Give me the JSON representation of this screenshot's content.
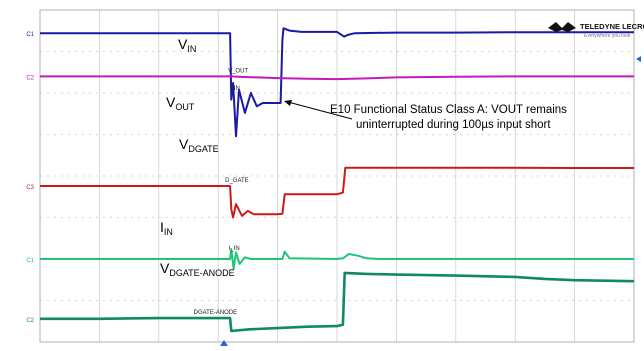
{
  "brand": {
    "name": "TELEDYNE LECROY",
    "tagline": "Everywhere you look"
  },
  "annotation": {
    "line1": "E10 Functional Status Class A: VOUT remains",
    "line2": "uninterrupted during 100µs input short"
  },
  "colors": {
    "vin": "#1a1aa6",
    "vout": "#c21bc2",
    "vdgate": "#cc1a1a",
    "iin": "#22c47a",
    "vdgate_anode": "#128a5a",
    "grid": "#c8c8c8",
    "marker": "#1a6ad6"
  },
  "chart_data": {
    "type": "line",
    "time_divisions": 10,
    "x_unit": "div",
    "grid": true,
    "series": [
      {
        "key": "vin",
        "label_main": "V",
        "label_sub": "IN",
        "probe_label": "VIN",
        "channel_marker": "C1",
        "x": [
          0,
          3.2,
          3.22,
          3.25,
          3.3,
          3.35,
          3.45,
          3.55,
          3.65,
          3.75,
          3.9,
          4.0,
          4.05,
          4.08,
          4.1,
          4.2,
          4.4,
          5.0,
          5.12,
          5.2,
          5.3,
          6.0,
          7.0,
          8.0,
          9.0,
          10.0
        ],
        "values": [
          9.3,
          9.3,
          7.3,
          7.8,
          6.2,
          7.6,
          6.9,
          7.5,
          7.1,
          7.2,
          7.2,
          7.2,
          7.2,
          9.1,
          9.45,
          9.38,
          9.34,
          9.34,
          9.2,
          9.26,
          9.3,
          9.32,
          9.32,
          9.33,
          9.33,
          9.33
        ]
      },
      {
        "key": "vout",
        "label_main": "V",
        "label_sub": "OUT",
        "probe_label": "V_OUT",
        "channel_marker": "C2",
        "x": [
          0,
          2.0,
          3.2,
          3.5,
          4.0,
          4.5,
          5.0,
          5.5,
          6.0,
          7.0,
          8.0,
          9.0,
          10.0
        ],
        "values": [
          8.0,
          8.0,
          8.0,
          7.98,
          7.95,
          7.93,
          7.92,
          7.94,
          7.97,
          7.99,
          8.0,
          8.0,
          8.0
        ]
      },
      {
        "key": "vdgate",
        "label_main": "V",
        "label_sub": "DGATE",
        "probe_label": "D_GATE",
        "channel_marker": "C3",
        "x": [
          0,
          3.2,
          3.22,
          3.25,
          3.3,
          3.4,
          3.5,
          3.6,
          4.0,
          4.08,
          4.12,
          5.0,
          5.1,
          5.14,
          5.2,
          6.0,
          7.0,
          8.0,
          9.0,
          10.0
        ],
        "values": [
          4.7,
          4.7,
          4.0,
          3.75,
          4.15,
          3.8,
          3.95,
          3.85,
          3.85,
          3.86,
          4.45,
          4.45,
          4.5,
          5.25,
          5.25,
          5.25,
          5.25,
          5.25,
          5.24,
          5.24
        ]
      },
      {
        "key": "iin",
        "label_main": "I",
        "label_sub": "IN",
        "probe_label": "I_IN",
        "channel_marker": "C1",
        "x": [
          0,
          3.2,
          3.22,
          3.26,
          3.3,
          3.36,
          3.45,
          3.55,
          4.0,
          4.08,
          4.12,
          4.2,
          5.0,
          5.1,
          5.2,
          5.35,
          5.5,
          5.7,
          6.0,
          7.0,
          8.0,
          9.0,
          10.0
        ],
        "values": [
          2.5,
          2.5,
          2.8,
          2.2,
          2.7,
          2.35,
          2.55,
          2.5,
          2.5,
          2.5,
          2.72,
          2.52,
          2.5,
          2.52,
          2.65,
          2.6,
          2.52,
          2.5,
          2.5,
          2.5,
          2.5,
          2.5,
          2.5
        ]
      },
      {
        "key": "vdgate_anode",
        "label_main": "V",
        "label_sub": "DGATE-ANODE",
        "probe_label": "DGATE-ANODE",
        "channel_marker": "C2",
        "x": [
          0,
          1.0,
          2.0,
          3.2,
          3.22,
          3.5,
          4.0,
          4.5,
          5.0,
          5.1,
          5.13,
          5.5,
          6.0,
          7.0,
          8.0,
          8.5,
          9.0,
          10.0
        ],
        "values": [
          0.7,
          0.7,
          0.72,
          0.72,
          0.33,
          0.38,
          0.42,
          0.46,
          0.48,
          0.52,
          2.08,
          2.05,
          2.03,
          2.0,
          1.96,
          1.9,
          1.86,
          1.83
        ]
      }
    ],
    "probe_label_positions": [
      {
        "series": "vin",
        "t": 3.23
      },
      {
        "series": "vout",
        "t": 3.2
      },
      {
        "series": "vdgate",
        "t": 3.15
      },
      {
        "series": "iin",
        "t": 3.21
      },
      {
        "series": "vdgate_anode",
        "t": 2.62
      }
    ]
  }
}
